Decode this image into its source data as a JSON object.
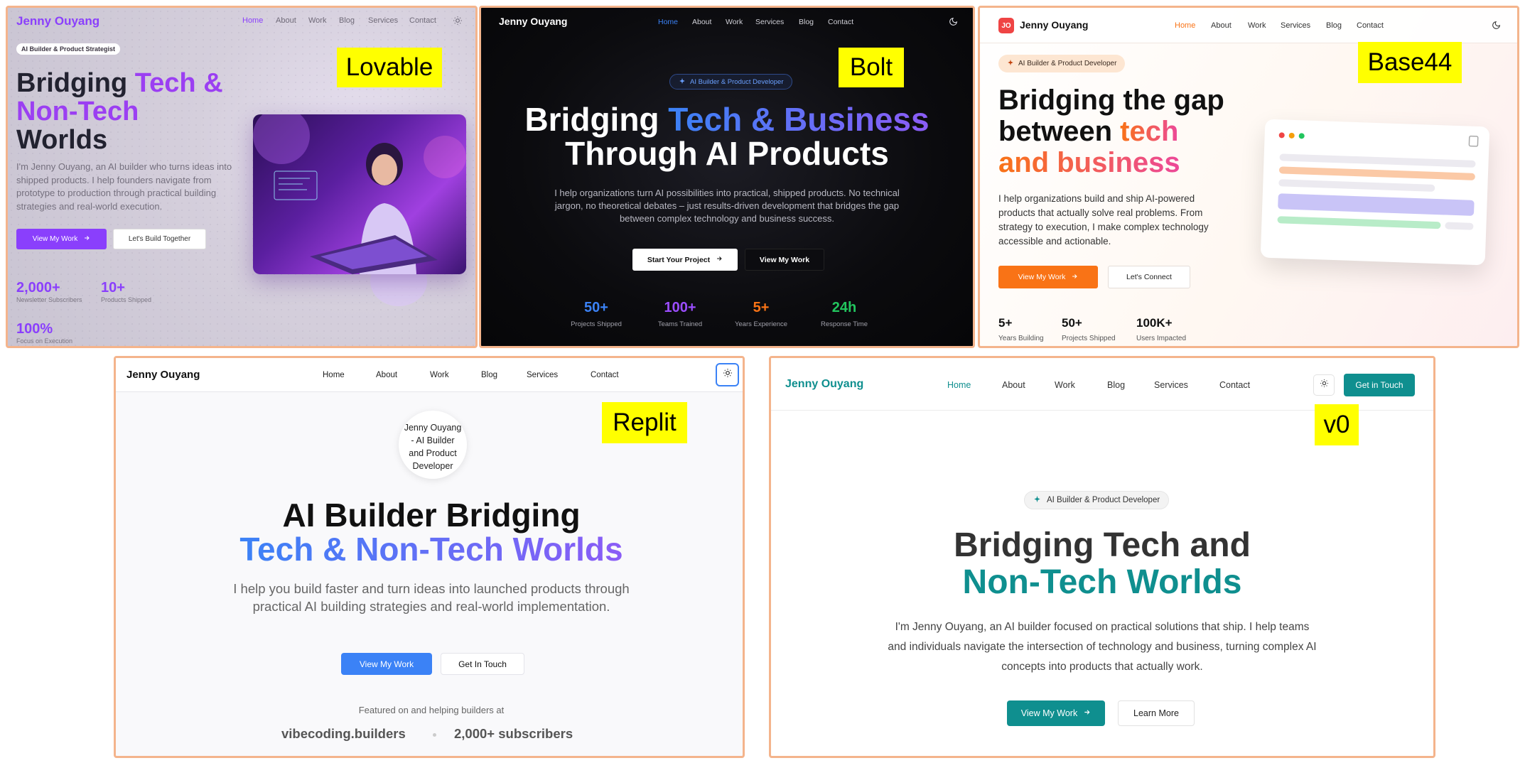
{
  "panels": {
    "lovable": {
      "tag": "Lovable",
      "brand": "Jenny Ouyang",
      "nav": [
        "Home",
        "About",
        "Work",
        "Blog",
        "Services",
        "Contact"
      ],
      "badge": "AI Builder & Product Strategist",
      "heading_l1_plain": "Bridging ",
      "heading_l1_accent": "Tech &",
      "heading_l2_accent": "Non-Tech",
      "heading_l3_plain": "Worlds",
      "description": "I'm Jenny Ouyang, an AI builder who turns ideas into shipped products. I help founders navigate from prototype to production through practical building strategies and real-world execution.",
      "primary_button": "View My Work",
      "secondary_button": "Let's Build Together",
      "stats": [
        {
          "value": "2,000+",
          "label": "Newsletter Subscribers"
        },
        {
          "value": "10+",
          "label": "Products Shipped"
        },
        {
          "value": "100%",
          "label": "Focus on Execution"
        }
      ]
    },
    "bolt": {
      "tag": "Bolt",
      "brand": "Jenny Ouyang",
      "nav": [
        "Home",
        "About",
        "Work",
        "Services",
        "Blog",
        "Contact"
      ],
      "badge": "AI Builder & Product Developer",
      "heading_l1_plain": "Bridging ",
      "heading_l1_accent": "Tech & Business",
      "heading_l2_plain": "Through AI Products",
      "description": "I help organizations turn AI possibilities into practical, shipped products. No technical jargon, no theoretical debates – just results-driven development that bridges the gap between complex technology and business success.",
      "primary_button": "Start Your Project",
      "secondary_button": "View My Work",
      "stats": [
        {
          "value": "50+",
          "label": "Projects Shipped",
          "color": "#3b82f6"
        },
        {
          "value": "100+",
          "label": "Teams Trained",
          "color": "#9b4dff"
        },
        {
          "value": "5+",
          "label": "Years Experience",
          "color": "#f97316"
        },
        {
          "value": "24h",
          "label": "Response Time",
          "color": "#22c55e"
        }
      ]
    },
    "base44": {
      "tag": "Base44",
      "logo": "JO",
      "brand": "Jenny Ouyang",
      "nav": [
        "Home",
        "About",
        "Work",
        "Services",
        "Blog",
        "Contact"
      ],
      "badge": "AI Builder & Product Developer",
      "heading_l1_plain": "Bridging the gap",
      "heading_l2_plain": "between ",
      "heading_l2_accent": "tech",
      "heading_l3_accent": "and business",
      "description": "I help organizations build and ship AI-powered products that actually solve real problems. From strategy to execution, I make complex technology accessible and actionable.",
      "primary_button": "View My Work",
      "secondary_button": "Let's Connect",
      "stats": [
        {
          "value": "5+",
          "label": "Years Building"
        },
        {
          "value": "50+",
          "label": "Projects Shipped"
        },
        {
          "value": "100K+",
          "label": "Users Impacted"
        }
      ]
    },
    "replit": {
      "tag": "Replit",
      "brand": "Jenny Ouyang",
      "nav": [
        "Home",
        "About",
        "Work",
        "Blog",
        "Services",
        "Contact"
      ],
      "avatar_alt": "Jenny Ouyang - AI Builder and Product Developer",
      "heading_l1_plain": "AI Builder Bridging",
      "heading_l2_accent": "Tech & Non-Tech Worlds",
      "description": "I help you build faster and turn ideas into launched products through practical AI building strategies and real-world implementation.",
      "primary_button": "View My Work",
      "secondary_button": "Get In Touch",
      "featured_text": "Featured on and helping builders at",
      "proof": [
        "vibecoding.builders",
        "2,000+ subscribers"
      ]
    },
    "v0": {
      "tag": "v0",
      "brand": "Jenny Ouyang",
      "nav": [
        "Home",
        "About",
        "Work",
        "Blog",
        "Services",
        "Contact"
      ],
      "cta": "Get in Touch",
      "badge": "AI Builder & Product Developer",
      "heading_l1_plain": "Bridging Tech and",
      "heading_l2_accent": "Non-Tech Worlds",
      "description": "I'm Jenny Ouyang, an AI builder focused on practical solutions that ship. I help teams and individuals navigate the intersection of technology and business, turning complex AI concepts into products that actually work.",
      "primary_button": "View My Work",
      "secondary_button": "Learn More"
    }
  },
  "colors": {
    "lovable_accent": "#8a3ffc",
    "bolt_accent": "#3b82f6",
    "base44_accent": "#f97316",
    "replit_accent": "#3b82f6",
    "v0_accent": "#0f8f8f",
    "label_bg": "#ffff00",
    "panel_border": "#f4b48c"
  }
}
